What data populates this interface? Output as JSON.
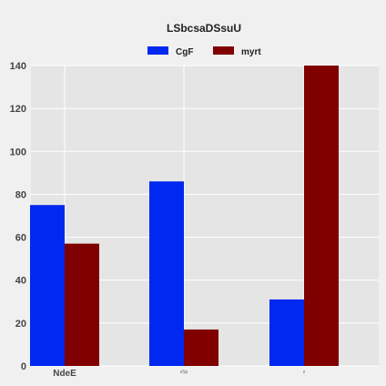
{
  "chart_data": {
    "type": "bar",
    "title": "LSbcsaDSsuU",
    "categories": [
      "NdeE",
      "xSp",
      "z"
    ],
    "series": [
      {
        "name": "CgF",
        "values": [
          75,
          86,
          31
        ],
        "color": "#0028f0"
      },
      {
        "name": "myrt",
        "values": [
          57,
          17,
          140
        ],
        "color": "#800000"
      }
    ],
    "yticks": [
      0,
      20,
      40,
      60,
      80,
      100,
      120,
      140
    ],
    "ylim": [
      0,
      140
    ],
    "xlabel": "",
    "ylabel": "",
    "grid": true,
    "legend_position": "top-center",
    "colors": {
      "background": "#f0f0f0",
      "plot_area": "#e5e5e5",
      "grid": "#ffffff"
    }
  }
}
